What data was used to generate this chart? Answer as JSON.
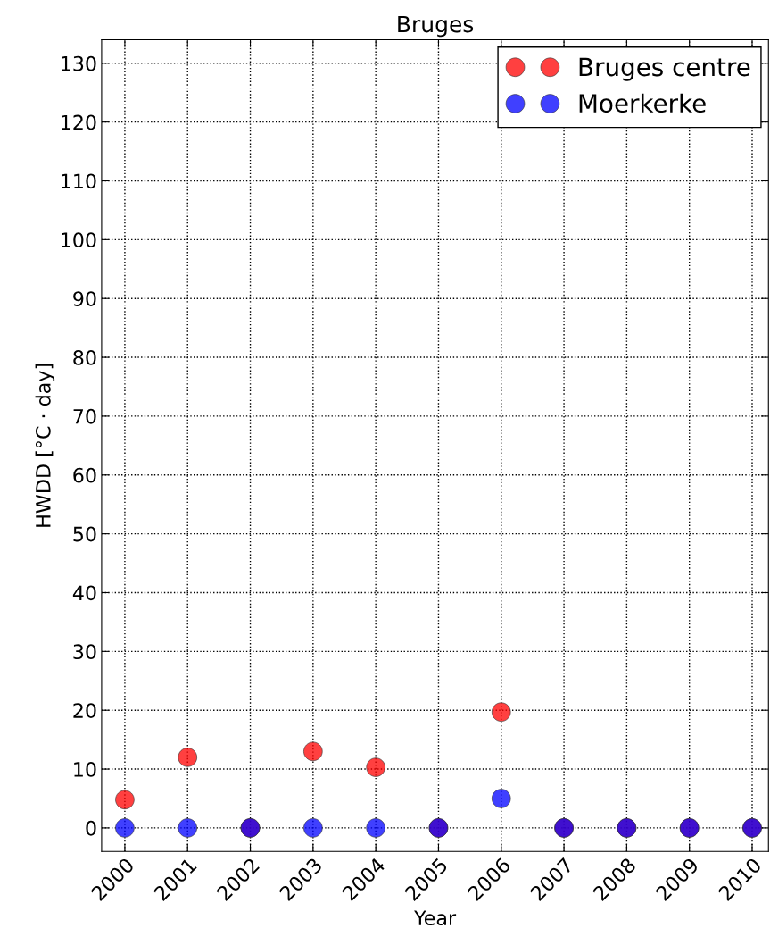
{
  "chart_data": {
    "type": "scatter",
    "title": "Bruges",
    "xlabel": "Year",
    "ylabel": "HWDD [°C · day]",
    "x": [
      2000,
      2001,
      2002,
      2003,
      2004,
      2005,
      2006,
      2007,
      2008,
      2009,
      2010
    ],
    "series": [
      {
        "name": "Bruges centre",
        "color": "#ff0000",
        "values": [
          4.8,
          12,
          0,
          13,
          10.3,
          0,
          19.7,
          0,
          0,
          0,
          0
        ]
      },
      {
        "name": "Moerkerke",
        "color": "#0000ff",
        "values": [
          0,
          0,
          0,
          0,
          0,
          0,
          5,
          0,
          0,
          0,
          0
        ]
      }
    ],
    "xlim": [
      1999.63,
      2010.26
    ],
    "xticks": [
      2000,
      2001,
      2002,
      2003,
      2004,
      2005,
      2006,
      2007,
      2008,
      2009,
      2010
    ],
    "ylim": [
      -4,
      134
    ],
    "yticks": [
      0,
      10,
      20,
      30,
      40,
      50,
      60,
      70,
      80,
      90,
      100,
      110,
      120,
      130
    ],
    "grid": true,
    "legend": "top right",
    "marker": "circle"
  }
}
